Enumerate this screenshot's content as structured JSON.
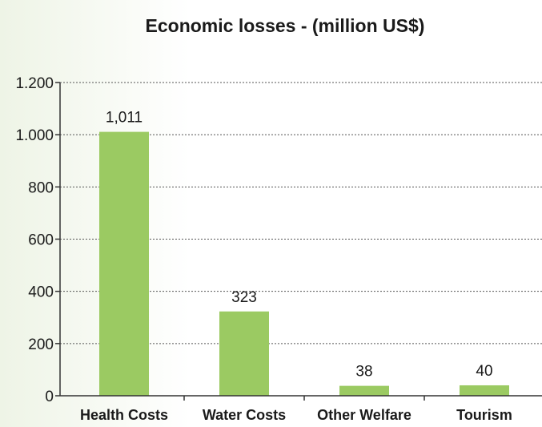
{
  "chart_data": {
    "type": "bar",
    "title": "Economic losses  - (million US$)",
    "xlabel": "",
    "ylabel": "",
    "categories": [
      "Health Costs",
      "Water Costs",
      "Other Welfare",
      "Tourism"
    ],
    "values": [
      1011,
      323,
      38,
      40
    ],
    "value_labels": [
      "1,011",
      "323",
      "38",
      "40"
    ],
    "ylim": [
      0,
      1200
    ],
    "yticks": [
      0,
      200,
      400,
      600,
      800,
      1000,
      1200
    ],
    "ytick_labels": [
      "0",
      "200",
      "400",
      "600",
      "800",
      "1.000",
      "1.200"
    ],
    "grid": true,
    "legend": "none",
    "bar_color": "#9bca62",
    "axis_color": "#333333",
    "grid_color": "#555555"
  }
}
